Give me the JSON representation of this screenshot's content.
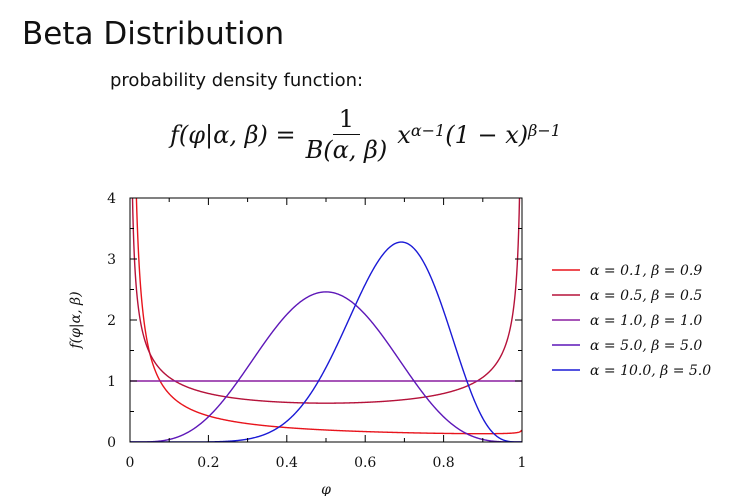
{
  "slide": {
    "title": "Beta Distribution",
    "subtitle": "probability density function:"
  },
  "formula": {
    "lhs": "f(φ|α, β) =",
    "numerator": "1",
    "denominator": "B(α, β)",
    "rhs_base1": "x",
    "rhs_exp1": "α−1",
    "rhs_base2": "(1 − x)",
    "rhs_exp2": "β−1"
  },
  "chart_data": {
    "type": "line",
    "title": "",
    "xlabel": "φ",
    "ylabel": "f(φ|α, β)",
    "xlim": [
      0,
      1
    ],
    "ylim": [
      0,
      4
    ],
    "xticks": [
      "0",
      "0.2",
      "0.4",
      "0.6",
      "0.8",
      "1"
    ],
    "yticks": [
      "0",
      "1",
      "2",
      "3",
      "4"
    ],
    "grid": false,
    "legend_position": "right",
    "series": [
      {
        "name": "α = 0.1, β = 0.9",
        "alpha": 0.1,
        "beta": 0.9,
        "color": "#e8141c",
        "x": [
          0.005,
          0.01,
          0.02,
          0.05,
          0.1,
          0.2,
          0.4,
          0.6,
          0.8,
          0.95,
          0.99,
          0.995
        ],
        "y": [
          3.98,
          2.07,
          1.09,
          0.48,
          0.25,
          0.13,
          0.07,
          0.05,
          0.05,
          0.06,
          0.14,
          0.24
        ]
      },
      {
        "name": "α = 0.5, β = 0.5",
        "alpha": 0.5,
        "beta": 0.5,
        "color": "#b5123a",
        "x": [
          0.005,
          0.01,
          0.02,
          0.05,
          0.1,
          0.2,
          0.3,
          0.4,
          0.5,
          0.6,
          0.7,
          0.8,
          0.9,
          0.95,
          0.98,
          0.99,
          0.995
        ],
        "y": [
          4.51,
          3.2,
          2.27,
          1.46,
          1.06,
          0.8,
          0.69,
          0.65,
          0.64,
          0.65,
          0.69,
          0.8,
          1.06,
          1.46,
          2.27,
          3.2,
          4.51
        ]
      },
      {
        "name": "α = 1.0, β = 1.0",
        "alpha": 1.0,
        "beta": 1.0,
        "color": "#8a1fa0",
        "x": [
          0,
          0.25,
          0.5,
          0.75,
          1
        ],
        "y": [
          1,
          1,
          1,
          1,
          1
        ]
      },
      {
        "name": "α = 5.0, β = 5.0",
        "alpha": 5.0,
        "beta": 5.0,
        "color": "#5d17b8",
        "x": [
          0,
          0.1,
          0.2,
          0.3,
          0.4,
          0.5,
          0.6,
          0.7,
          0.8,
          0.9,
          1
        ],
        "y": [
          0,
          0.04,
          0.53,
          1.51,
          2.26,
          2.46,
          2.26,
          1.51,
          0.53,
          0.04,
          0
        ]
      },
      {
        "name": "α = 10.0, β = 5.0",
        "alpha": 10.0,
        "beta": 5.0,
        "color": "#1a1ad6",
        "x": [
          0,
          0.2,
          0.3,
          0.4,
          0.5,
          0.6,
          0.7,
          0.8,
          0.9,
          1
        ],
        "y": [
          0,
          0,
          0.02,
          0.22,
          0.92,
          2.12,
          3.12,
          2.41,
          0.56,
          0
        ]
      }
    ]
  }
}
